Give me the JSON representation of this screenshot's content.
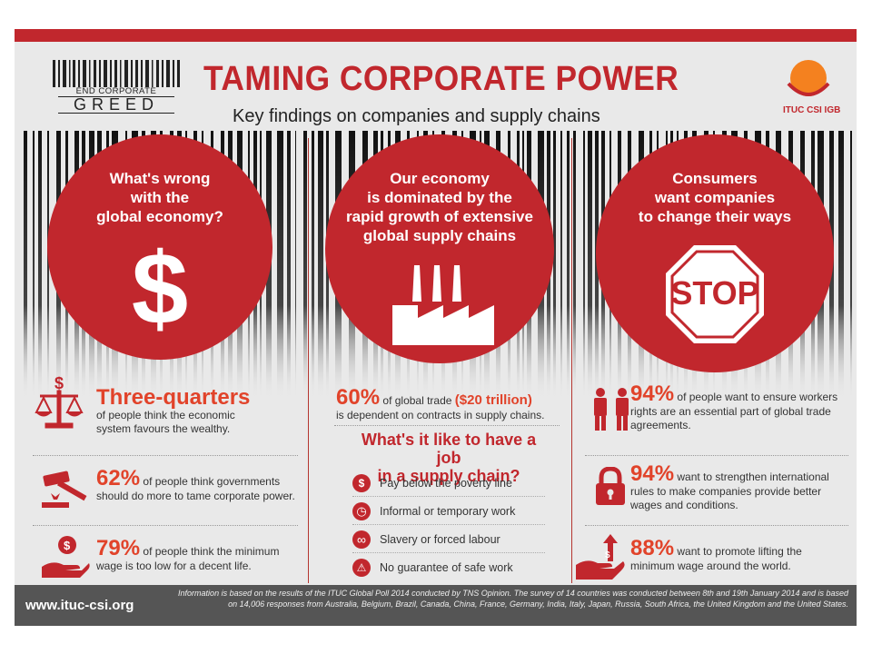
{
  "header": {
    "logo_line1": "END CORPORATE",
    "logo_line2": "GREED",
    "title": "TAMING CORPORATE POWER",
    "subtitle": "Key findings on companies and supply chains",
    "org_label": "ITUC CSI IGB"
  },
  "columns": [
    {
      "circle_text": [
        "What's wrong",
        "with the",
        "global economy?"
      ],
      "icon": "dollar-icon"
    },
    {
      "circle_text": [
        "Our economy",
        "is dominated by the",
        "rapid growth of extensive",
        "global supply chains"
      ],
      "icon": "factory-icon"
    },
    {
      "circle_text": [
        "Consumers",
        "want companies",
        "to change their ways"
      ],
      "icon": "stop-sign-icon",
      "icon_text": "STOP"
    }
  ],
  "left_stats": [
    {
      "value": "Three-quarters",
      "text1": "of people think the economic",
      "text2": "system favours the wealthy.",
      "icon": "scales-icon"
    },
    {
      "value": "62%",
      "text1": "of people think governments",
      "text2": "should do more to tame corporate power.",
      "icon": "gavel-icon"
    },
    {
      "value": "79%",
      "text1": "of people think the minimum",
      "text2": "wage is too low for a decent life.",
      "icon": "hand-coin-icon"
    }
  ],
  "middle": {
    "value": "60%",
    "text_a": "of global trade",
    "highlight": "($20 trillion)",
    "text2": "is dependent on contracts in supply chains.",
    "subhead1": "What's it like to have a job",
    "subhead2": "in a supply chain?",
    "jobs": [
      {
        "label": "Pay below the poverty line",
        "icon": "low-pay-icon",
        "glyph": "$"
      },
      {
        "label": "Informal or temporary work",
        "icon": "clock-icon",
        "glyph": "◷"
      },
      {
        "label": "Slavery or forced labour",
        "icon": "chain-icon",
        "glyph": "∞"
      },
      {
        "label": "No guarantee of safe work",
        "icon": "warning-icon",
        "glyph": "⚠"
      }
    ]
  },
  "right_stats": [
    {
      "value": "94%",
      "text1": "of people want to ensure workers",
      "text2": "rights are an essential part of global trade",
      "text3": "agreements.",
      "icon": "workers-icon"
    },
    {
      "value": "94%",
      "text1": "want to strengthen international",
      "text2": "rules to make companies provide better",
      "text3": "wages and conditions.",
      "icon": "padlock-icon"
    },
    {
      "value": "88%",
      "text1": "want to promote lifting the",
      "text2": "minimum wage around the world.",
      "text3": "",
      "icon": "hand-arrow-up-icon"
    }
  ],
  "footer": {
    "url": "www.ituc-csi.org",
    "note1": "Information is based on the results of the ITUC Global Poll 2014 conducted by TNS Opinion. The survey of 14 countries was conducted between 8th and 19th January 2014 and is based",
    "note2": "on 14,006 responses from Australia, Belgium, Brazil, Canada, China, France, Germany, India, Italy, Japan, Russia, South Africa, the United Kingdom and the United States."
  },
  "colors": {
    "red": "#c1272d",
    "orange": "#e1432a",
    "background": "#e9e9e9",
    "footer": "#555555"
  }
}
